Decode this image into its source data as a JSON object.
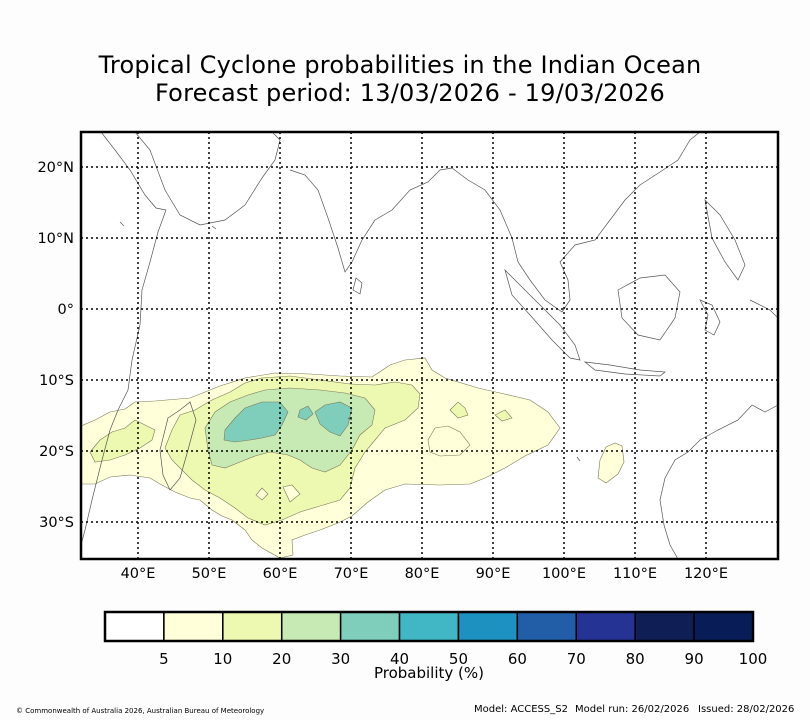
{
  "title": {
    "line1": "Tropical Cyclone probabilities in the Indian Ocean",
    "line2": "Forecast period: 13/03/2026 - 19/03/2026"
  },
  "map": {
    "lon_range": [
      32,
      130
    ],
    "lat_range": [
      -35,
      25
    ],
    "lon_ticks": [
      40,
      50,
      60,
      70,
      80,
      90,
      100,
      110,
      120
    ],
    "lat_ticks": [
      20,
      10,
      0,
      -10,
      -20,
      -30
    ],
    "lon_labels": [
      "40°E",
      "50°E",
      "60°E",
      "70°E",
      "80°E",
      "90°E",
      "100°E",
      "110°E",
      "120°E"
    ],
    "lat_labels": [
      "20°N",
      "10°N",
      "0°",
      "10°S",
      "20°S",
      "30°S"
    ]
  },
  "colorbar": {
    "label": "Probability (%)",
    "ticks": [
      "5",
      "10",
      "20",
      "30",
      "40",
      "50",
      "60",
      "70",
      "80",
      "90",
      "100"
    ],
    "colors": [
      "#ffffff",
      "#ffffd9",
      "#edf8b1",
      "#c7e9b4",
      "#7fcdbb",
      "#41b6c4",
      "#1d91c0",
      "#225ea8",
      "#253494",
      "#0f1f55",
      "#081d58"
    ]
  },
  "footer": {
    "copyright": "© Commonwealth of Australia 2026, Australian Bureau of Meteorology",
    "model": "Model: ACCESS_S2",
    "model_run": "Model run: 26/02/2026",
    "issued": "Issued: 28/02/2026"
  },
  "chart_data": {
    "type": "contour-map",
    "variable": "Tropical cyclone probability (%)",
    "levels": [
      5,
      10,
      20,
      30,
      40
    ],
    "regions": [
      {
        "level": 5,
        "lon": [
          32,
          110
        ],
        "lat": [
          -35,
          -7
        ]
      },
      {
        "level": 10,
        "lon": [
          38,
          87
        ],
        "lat": [
          -32,
          -10
        ]
      },
      {
        "level": 20,
        "lon": [
          48,
          73
        ],
        "lat": [
          -24,
          -12
        ]
      },
      {
        "level": 30,
        "lon": [
          51,
          68
        ],
        "lat": [
          -19,
          -14
        ]
      }
    ]
  }
}
